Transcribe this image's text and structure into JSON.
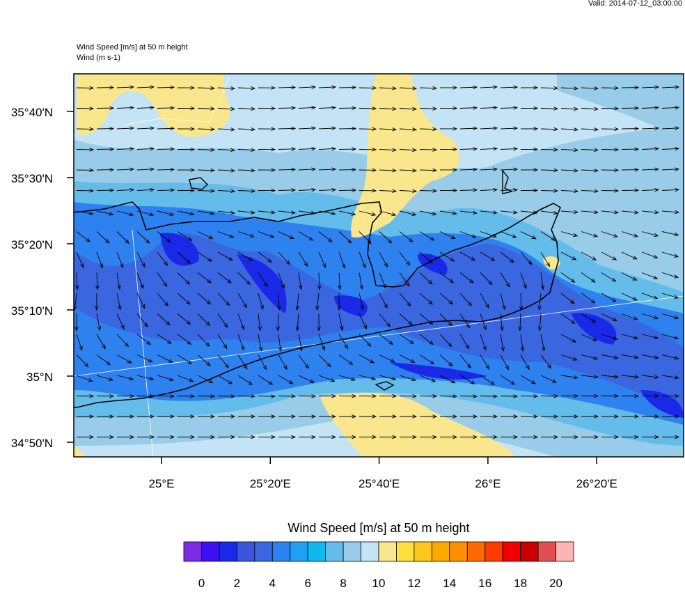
{
  "header": {
    "valid": "Valid: 2014-07-12_03:00:00"
  },
  "titles": [
    "Wind Speed [m/s] at 50 m height",
    "Wind   (m s-1)"
  ],
  "map": {
    "lat_labels": [
      "35°40'N",
      "35°30'N",
      "35°20'N",
      "35°10'N",
      "35°N",
      "34°50'N"
    ],
    "lon_labels": [
      "25°E",
      "25°20'E",
      "25°40'E",
      "26°E",
      "26°20'E"
    ]
  },
  "colorbar": {
    "title": "Wind Speed [m/s] at 50 m height",
    "colors": [
      "#7b2be0",
      "#3c10f0",
      "#1a28e8",
      "#3a56dc",
      "#3a66e0",
      "#2d82f0",
      "#1ea0f5",
      "#10b8f0",
      "#64bceb",
      "#98cce8",
      "#c4e4f5",
      "#fae68c",
      "#fce040",
      "#fcc81e",
      "#fca800",
      "#fc9000",
      "#fc6a00",
      "#fc3c00",
      "#f00000",
      "#c80000",
      "#e05050",
      "#fcb4b4"
    ],
    "labels": [
      "0",
      "2",
      "4",
      "6",
      "8",
      "10",
      "12",
      "14",
      "16",
      "18",
      "20"
    ]
  }
}
